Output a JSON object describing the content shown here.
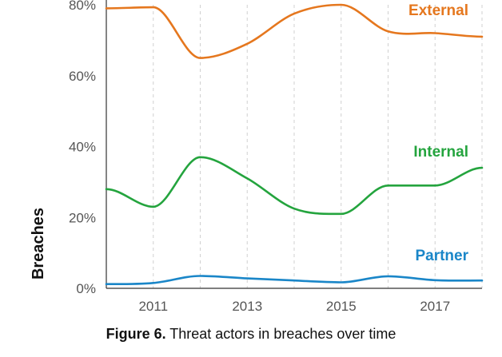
{
  "caption": {
    "figure_label": "Figure 6.",
    "text": " Threat actors in breaches over time"
  },
  "chart_data": {
    "type": "line",
    "ylabel": "Breaches",
    "xlabel": "",
    "x": [
      2010,
      2011,
      2012,
      2013,
      2014,
      2015,
      2016,
      2017,
      2018
    ],
    "x_ticks": [
      "2011",
      "2013",
      "2015",
      "2017"
    ],
    "x_tick_values": [
      2011,
      2013,
      2015,
      2017
    ],
    "xlim": [
      2010,
      2018
    ],
    "y_ticks": [
      "0%",
      "20%",
      "40%",
      "60%",
      "80%"
    ],
    "y_tick_values": [
      0,
      20,
      40,
      60,
      80
    ],
    "ylim": [
      0,
      80
    ],
    "grid": "vertical dashed",
    "series": [
      {
        "name": "External",
        "color": "#e5771e",
        "values": [
          79,
          79.3,
          65,
          69,
          77.5,
          80,
          72.5,
          72,
          71
        ]
      },
      {
        "name": "Internal",
        "color": "#24a43e",
        "values": [
          28,
          23,
          37,
          31,
          22.5,
          21,
          29,
          29,
          34
        ]
      },
      {
        "name": "Partner",
        "color": "#1a86c8",
        "values": [
          1.2,
          1.5,
          3.5,
          2.8,
          2.2,
          1.7,
          3.4,
          2.3,
          2.2
        ]
      }
    ]
  }
}
